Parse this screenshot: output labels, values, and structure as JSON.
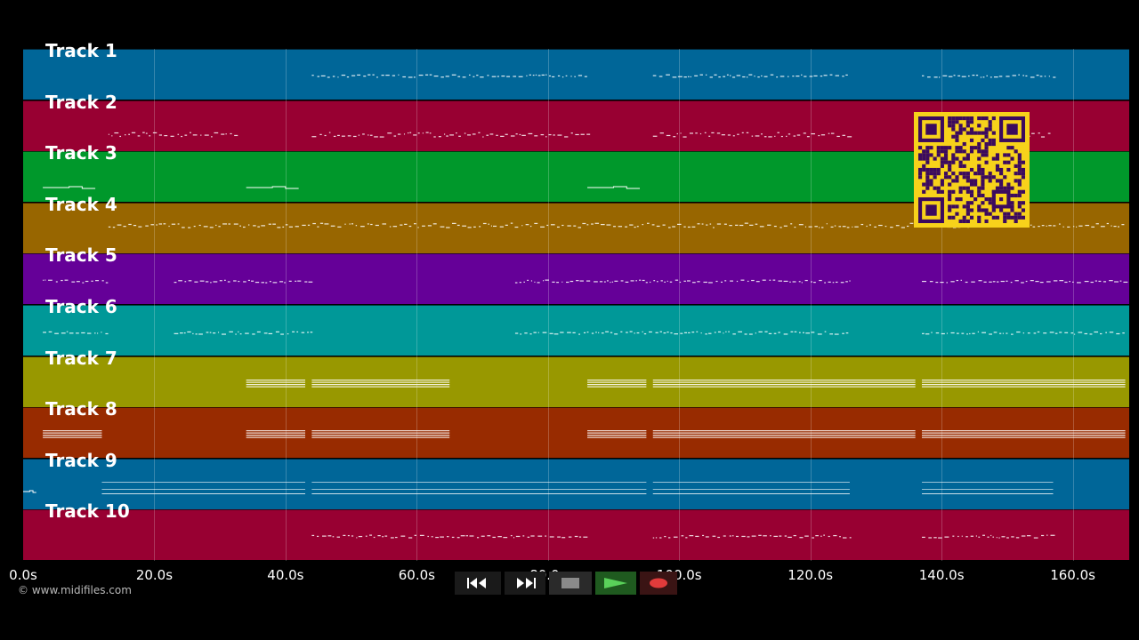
{
  "tracks": [
    {
      "label": "Track 1",
      "color": "#006698"
    },
    {
      "label": "Track 2",
      "color": "#980032"
    },
    {
      "label": "Track 3",
      "color": "#00982b"
    },
    {
      "label": "Track 4",
      "color": "#986600"
    },
    {
      "label": "Track 5",
      "color": "#650098"
    },
    {
      "label": "Track 6",
      "color": "#009898"
    },
    {
      "label": "Track 7",
      "color": "#989800"
    },
    {
      "label": "Track 8",
      "color": "#982b00"
    },
    {
      "label": "Track 9",
      "color": "#006698"
    },
    {
      "label": "Track 10",
      "color": "#980032"
    }
  ],
  "timeline": {
    "ticks": [
      "0.0s",
      "20.0s",
      "40.0s",
      "60.0s",
      "80.0s",
      "100.0s",
      "120.0s",
      "140.0s",
      "160.0s"
    ],
    "tick_values_s": [
      0,
      20,
      40,
      60,
      80,
      100,
      120,
      140,
      160
    ],
    "max_s": 168.6
  },
  "copyright": "© www.midifiles.com",
  "transport": {
    "rewind_icon": "rewind-icon",
    "forward_icon": "fast-forward-icon",
    "stop_icon": "stop-icon",
    "play_icon": "play-icon",
    "record_icon": "record-icon"
  },
  "qr_icon": "qr-code-icon"
}
